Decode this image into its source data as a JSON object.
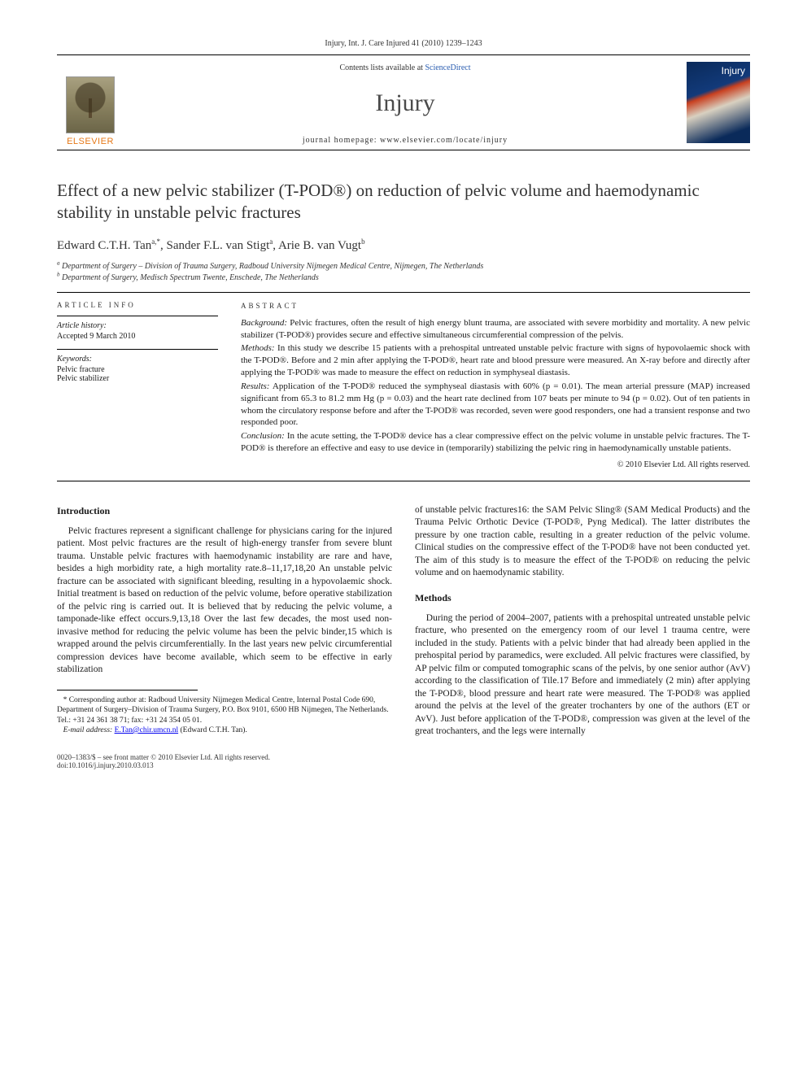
{
  "running_head": "Injury, Int. J. Care Injured 41 (2010) 1239–1243",
  "header": {
    "contents_prefix": "Contents lists available at ",
    "contents_link": "ScienceDirect",
    "journal": "Injury",
    "homepage_prefix": "journal homepage: ",
    "homepage_url": "www.elsevier.com/locate/injury",
    "publisher_logo_text": "ELSEVIER",
    "cover_title": "Injury"
  },
  "title": "Effect of a new pelvic stabilizer (T-POD®) on reduction of pelvic volume and haemodynamic stability in unstable pelvic fractures",
  "authors_html": "Edward C.T.H. Tan<sup>a,*</sup>, Sander F.L. van Stigt<sup>a</sup>, Arie B. van Vugt<sup>b</sup>",
  "affiliations": {
    "a": "Department of Surgery – Division of Trauma Surgery, Radboud University Nijmegen Medical Centre, Nijmegen, The Netherlands",
    "b": "Department of Surgery, Medisch Spectrum Twente, Enschede, The Netherlands"
  },
  "info": {
    "label_info": "ARTICLE INFO",
    "label_abstract": "ABSTRACT",
    "history_head": "Article history:",
    "history_line": "Accepted 9 March 2010",
    "keywords_head": "Keywords:",
    "keywords": [
      "Pelvic fracture",
      "Pelvic stabilizer"
    ]
  },
  "abstract": {
    "background_label": "Background:",
    "background": " Pelvic fractures, often the result of high energy blunt trauma, are associated with severe morbidity and mortality. A new pelvic stabilizer (T-POD®) provides secure and effective simultaneous circumferential compression of the pelvis.",
    "methods_label": "Methods:",
    "methods": " In this study we describe 15 patients with a prehospital untreated unstable pelvic fracture with signs of hypovolaemic shock with the T-POD®. Before and 2 min after applying the T-POD®, heart rate and blood pressure were measured. An X-ray before and directly after applying the T-POD® was made to measure the effect on reduction in symphyseal diastasis.",
    "results_label": "Results:",
    "results": " Application of the T-POD® reduced the symphyseal diastasis with 60% (p = 0.01). The mean arterial pressure (MAP) increased significant from 65.3 to 81.2 mm Hg (p = 0.03) and the heart rate declined from 107 beats per minute to 94 (p = 0.02). Out of ten patients in whom the circulatory response before and after the T-POD® was recorded, seven were good responders, one had a transient response and two responded poor.",
    "conclusion_label": "Conclusion:",
    "conclusion": " In the acute setting, the T-POD® device has a clear compressive effect on the pelvic volume in unstable pelvic fractures. The T-POD® is therefore an effective and easy to use device in (temporarily) stabilizing the pelvic ring in haemodynamically unstable patients.",
    "copyright": "© 2010 Elsevier Ltd. All rights reserved."
  },
  "body": {
    "intro_head": "Introduction",
    "intro_p1": "Pelvic fractures represent a significant challenge for physicians caring for the injured patient. Most pelvic fractures are the result of high-energy transfer from severe blunt trauma. Unstable pelvic fractures with haemodynamic instability are rare and have, besides a high morbidity rate, a high mortality rate.8–11,17,18,20 An unstable pelvic fracture can be associated with significant bleeding, resulting in a hypovolaemic shock. Initial treatment is based on reduction of the pelvic volume, before operative stabilization of the pelvic ring is carried out. It is believed that by reducing the pelvic volume, a tamponade-like effect occurs.9,13,18 Over the last few decades, the most used non-invasive method for reducing the pelvic volume has been the pelvic binder,15 which is wrapped around the pelvis circumferentially. In the last years new pelvic circumferential compression devices have become available, which seem to be effective in early stabilization",
    "col2_p1": "of unstable pelvic fractures16: the SAM Pelvic Sling® (SAM Medical Products) and the Trauma Pelvic Orthotic Device (T-POD®, Pyng Medical). The latter distributes the pressure by one traction cable, resulting in a greater reduction of the pelvic volume. Clinical studies on the compressive effect of the T-POD® have not been conducted yet. The aim of this study is to measure the effect of the T-POD® on reducing the pelvic volume and on haemodynamic stability.",
    "methods_head": "Methods",
    "methods_p1": "During the period of 2004–2007, patients with a prehospital untreated unstable pelvic fracture, who presented on the emergency room of our level 1 trauma centre, were included in the study. Patients with a pelvic binder that had already been applied in the prehospital period by paramedics, were excluded. All pelvic fractures were classified, by AP pelvic film or computed tomographic scans of the pelvis, by one senior author (AvV) according to the classification of Tile.17 Before and immediately (2 min) after applying the T-POD®, blood pressure and heart rate were measured. The T-POD® was applied around the pelvis at the level of the greater trochanters by one of the authors (ET or AvV). Just before application of the T-POD®, compression was given at the level of the great trochanters, and the legs were internally"
  },
  "footnotes": {
    "corr": "* Corresponding author at: Radboud University Nijmegen Medical Centre, Internal Postal Code 690, Department of Surgery–Division of Trauma Surgery, P.O. Box 9101, 6500 HB Nijmegen, The Netherlands. Tel.: +31 24 361 38 71; fax: +31 24 354 05 01.",
    "email_label": "E-mail address:",
    "email": "E.Tan@chir.umcn.nl",
    "email_who": " (Edward C.T.H. Tan)."
  },
  "bottom": {
    "line1": "0020–1383/$ – see front matter © 2010 Elsevier Ltd. All rights reserved.",
    "line2": "doi:10.1016/j.injury.2010.03.013"
  },
  "colors": {
    "elsevier_orange": "#e67817",
    "link_blue": "#2a5db0",
    "text": "#1a1a1a",
    "rule": "#000000"
  },
  "typography": {
    "title_pt": 21,
    "author_pt": 15,
    "journal_pt": 30,
    "body_pt": 11.5,
    "abstract_pt": 11,
    "footnote_pt": 9.5
  }
}
